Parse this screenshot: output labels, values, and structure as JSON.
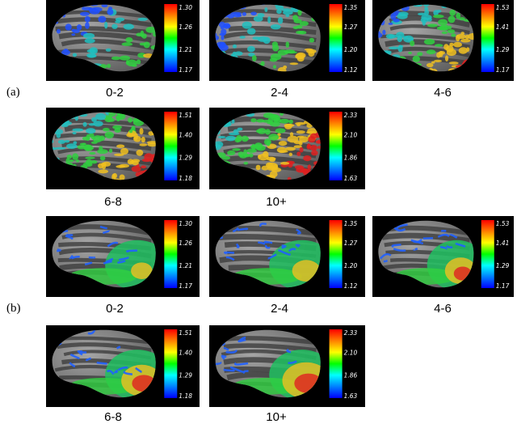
{
  "section_labels": [
    "(a)",
    "(b)"
  ],
  "colormap": [
    "#ff0000",
    "#ff8000",
    "#ffff00",
    "#00ff00",
    "#00ffff",
    "#0080ff",
    "#0000ff"
  ],
  "sections": [
    {
      "label": "(a)",
      "style": "patchy",
      "panels": [
        {
          "caption": "0-2",
          "ticks": [
            "1.30",
            "1.26",
            "1.21",
            "1.17"
          ]
        },
        {
          "caption": "2-4",
          "ticks": [
            "1.35",
            "1.27",
            "1.20",
            "1.12"
          ]
        },
        {
          "caption": "4-6",
          "ticks": [
            "1.53",
            "1.41",
            "1.29",
            "1.17"
          ]
        },
        {
          "caption": "6-8",
          "ticks": [
            "1.51",
            "1.40",
            "1.29",
            "1.18"
          ]
        },
        {
          "caption": "10+",
          "ticks": [
            "2.33",
            "2.10",
            "1.86",
            "1.63"
          ]
        }
      ]
    },
    {
      "label": "(b)",
      "style": "smooth",
      "panels": [
        {
          "caption": "0-2",
          "ticks": [
            "1.30",
            "1.26",
            "1.21",
            "1.17"
          ]
        },
        {
          "caption": "2-4",
          "ticks": [
            "1.35",
            "1.27",
            "1.20",
            "1.12"
          ]
        },
        {
          "caption": "4-6",
          "ticks": [
            "1.53",
            "1.41",
            "1.29",
            "1.17"
          ]
        },
        {
          "caption": "6-8",
          "ticks": [
            "1.51",
            "1.40",
            "1.29",
            "1.18"
          ]
        },
        {
          "caption": "10+",
          "ticks": [
            "2.33",
            "2.10",
            "1.86",
            "1.63"
          ]
        }
      ]
    }
  ]
}
